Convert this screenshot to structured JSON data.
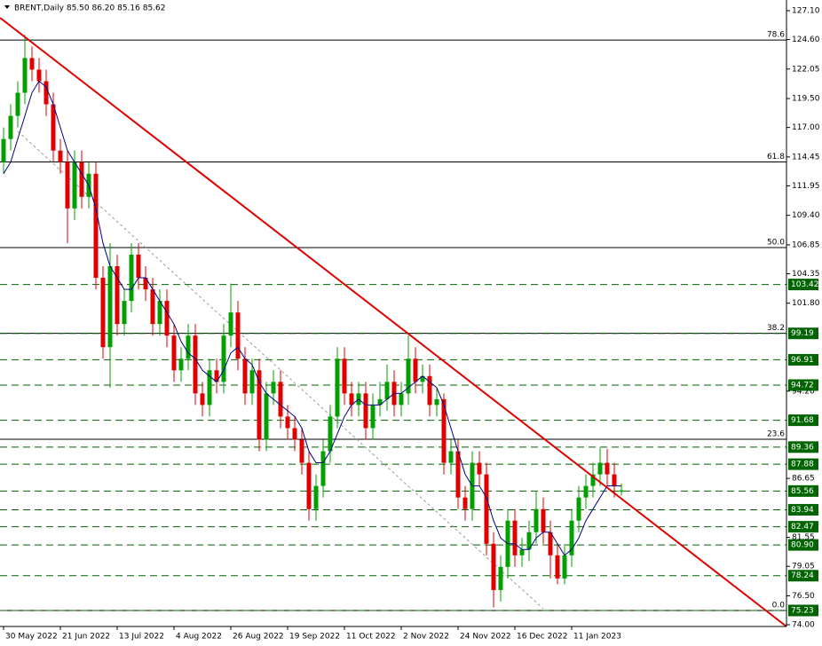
{
  "chart_data": {
    "type": "candlestick",
    "title": "BRENT,Daily  85.50 86.20 85.16 85.62",
    "open": [
      114,
      116,
      118,
      120,
      123,
      122,
      121,
      119,
      115,
      114,
      110,
      114,
      111,
      113,
      104,
      98,
      105,
      100,
      102,
      106,
      104,
      103,
      100,
      102,
      99,
      96,
      97,
      99,
      94,
      93,
      96,
      95,
      99,
      101,
      97,
      94,
      96,
      90,
      94,
      95,
      92,
      91,
      90,
      88,
      84,
      86,
      89,
      92,
      97,
      94,
      93,
      94,
      91,
      93,
      93.5,
      95,
      93,
      94,
      97,
      95,
      95.5,
      93,
      93.5,
      88,
      89,
      85,
      84,
      88,
      87,
      81,
      77,
      79,
      83,
      80,
      80.5,
      82,
      84,
      82,
      80,
      78,
      80,
      83,
      85,
      86,
      87,
      88,
      87,
      85.5
    ],
    "high": [
      117,
      119,
      121,
      125,
      124,
      123,
      122,
      120,
      116,
      115,
      115,
      115,
      114,
      114,
      105,
      107,
      106,
      103,
      107,
      107,
      105,
      104,
      103,
      103,
      100,
      98,
      100,
      100,
      95,
      97,
      97,
      100,
      103.5,
      102,
      98,
      97,
      97,
      95,
      96,
      96,
      93,
      92,
      91,
      89,
      87,
      90,
      93,
      98,
      98,
      95,
      95,
      95,
      94,
      95,
      96.5,
      96,
      95,
      99,
      98,
      96.5,
      96.5,
      94.5,
      94,
      90,
      90,
      86,
      89,
      89,
      88,
      82,
      80,
      84,
      84,
      81.5,
      83,
      85.5,
      85,
      83,
      81,
      81,
      84,
      86,
      87,
      88,
      89.3,
      89.2,
      88,
      86.2
    ],
    "low": [
      113,
      115,
      117,
      119,
      121,
      120,
      118,
      114,
      113,
      107,
      109,
      110,
      110,
      103,
      97,
      94.5,
      99,
      99,
      101,
      103,
      102,
      99,
      99,
      98,
      95,
      95,
      96,
      93,
      92,
      92,
      94,
      94,
      98,
      96,
      93,
      93,
      89,
      89,
      93,
      91,
      90,
      89,
      87,
      83,
      83,
      85,
      88,
      91,
      93,
      92,
      92,
      90,
      90,
      92,
      92.5,
      92,
      92,
      93,
      94,
      94,
      92,
      92,
      87,
      87,
      84,
      83,
      83,
      86,
      80,
      75.5,
      76,
      78,
      79,
      79,
      79.5,
      81,
      81,
      78,
      77.5,
      77.5,
      79,
      82,
      84,
      85,
      86,
      86,
      85,
      85.16
    ],
    "close": [
      116,
      118,
      120,
      123,
      122,
      121,
      119,
      115,
      114,
      110,
      114,
      111,
      113,
      104,
      98,
      105,
      100,
      102,
      106,
      104,
      103,
      100,
      102,
      99,
      96,
      97,
      99,
      94,
      93,
      96,
      95,
      99,
      101,
      97,
      94,
      96,
      90,
      94,
      95,
      92,
      91,
      90,
      88,
      84,
      86,
      89,
      92,
      97,
      94,
      93,
      94,
      91,
      93,
      93.5,
      95,
      93,
      94,
      97,
      95,
      95.5,
      93,
      93.5,
      88,
      89,
      85,
      84,
      88,
      87,
      81,
      77,
      79,
      83,
      80,
      80.5,
      82,
      84,
      82,
      80,
      78,
      80,
      83,
      85,
      86,
      87,
      88,
      87,
      86,
      85.62
    ],
    "bull_color": "#00a000",
    "bear_color": "#e00000",
    "line": {
      "color": "#000080",
      "values": [
        113,
        114,
        116,
        118,
        120,
        121,
        120.5,
        119,
        117,
        115,
        114,
        113,
        112,
        110,
        107,
        105,
        104,
        103,
        103,
        104,
        104,
        103,
        102,
        101,
        100,
        98.5,
        97.5,
        97,
        96,
        95.5,
        95,
        96,
        97.5,
        98,
        97,
        96.5,
        95,
        94,
        93.5,
        93,
        92.5,
        92,
        91,
        89,
        88,
        88,
        89,
        90.5,
        92,
        93,
        93.5,
        93,
        93,
        93,
        93.5,
        94,
        94,
        94.5,
        95,
        95.5,
        95,
        94.5,
        93,
        91,
        89,
        87,
        86,
        86,
        85,
        83,
        81.5,
        81,
        81,
        80.5,
        80.5,
        81.5,
        82,
        82,
        81,
        80,
        80.5,
        81.5,
        83,
        84,
        85,
        86,
        86,
        86
      ]
    },
    "xlim": [
      -0.5,
      110.25
    ],
    "xticks": [
      {
        "value": 0,
        "label": "30 May 2022"
      },
      {
        "value": 8,
        "label": "21 Jun 2022"
      },
      {
        "value": 16,
        "label": "13 Jul 2022"
      },
      {
        "value": 24,
        "label": "4 Aug 2022"
      },
      {
        "value": 32,
        "label": "26 Aug 2022"
      },
      {
        "value": 40,
        "label": "19 Sep 2022"
      },
      {
        "value": 48,
        "label": "11 Oct 2022"
      },
      {
        "value": 56,
        "label": "2 Nov 2022"
      },
      {
        "value": 64,
        "label": "24 Nov 2022"
      },
      {
        "value": 72,
        "label": "16 Dec 2022"
      },
      {
        "value": 80,
        "label": "11 Jan 2023"
      }
    ],
    "ylim": [
      74.0,
      127.1
    ],
    "yticks": [
      {
        "value": 127.1,
        "label": "127.10"
      },
      {
        "value": 124.6,
        "label": "124.60"
      },
      122.05,
      {
        "value": 119.5,
        "label": "119.50"
      },
      {
        "value": 117,
        "label": "117.00"
      },
      114.45,
      111.95,
      {
        "value": 109.4,
        "label": "109.40"
      },
      106.85,
      104.35,
      {
        "value": 101.8,
        "label": "101.80"
      },
      {
        "value": 94.2,
        "label": "94.20"
      },
      86.65,
      81.55,
      79.05,
      {
        "value": 76.5,
        "label": "76.50"
      },
      {
        "value": 74,
        "label": "74.00"
      }
    ],
    "fib_levels": [
      {
        "value": 124.56,
        "label": "78.6"
      },
      {
        "value": 114.02,
        "label": "61.8"
      },
      {
        "value": 106.61,
        "label": "50.0"
      },
      {
        "value": 99.2,
        "label": "38.2"
      },
      {
        "value": 90.04,
        "label": "23.6"
      },
      {
        "value": 75.23,
        "label": "0.0"
      }
    ],
    "level_color": "#006400",
    "levels": [
      103.42,
      99.19,
      96.91,
      94.72,
      91.68,
      89.36,
      87.88,
      85.56,
      83.94,
      82.47,
      {
        "value": 80.9,
        "label": "80.90"
      },
      78.24,
      75.23
    ]
  }
}
